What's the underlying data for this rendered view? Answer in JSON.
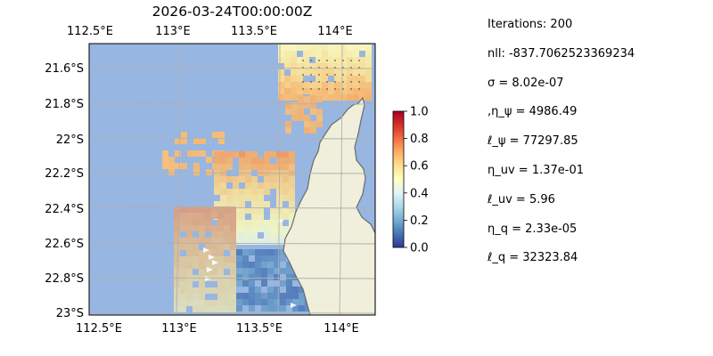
{
  "map": {
    "title": "2026-03-24T00:00:00Z",
    "lon_ticks": [
      "112.5°E",
      "113°E",
      "113.5°E",
      "114°E"
    ],
    "lat_ticks": [
      "21.6°S",
      "21.8°S",
      "22°S",
      "22.2°S",
      "22.4°S",
      "22.6°S",
      "22.8°S",
      "23°S"
    ],
    "lon_range": [
      112.5,
      114.2
    ],
    "lat_range": [
      -21.45,
      -23.0
    ],
    "ocean_color": "#97b6e1",
    "land_color": "#efefdc",
    "colormap": "RdYlBu_r"
  },
  "colorbar": {
    "range": [
      0.0,
      1.0
    ],
    "ticks": [
      "0.0",
      "0.2",
      "0.4",
      "0.6",
      "0.8",
      "1.0"
    ]
  },
  "stats": [
    "Iterations: 200",
    "nll: -837.7062523369234",
    "σ = 8.02e-07",
    ",η_ψ = 4986.49",
    "ℓ_ψ = 77297.85",
    "η_uv = 1.37e-01",
    "ℓ_uv = 5.96",
    "η_q = 2.33e-05",
    "ℓ_q = 32323.84"
  ]
}
